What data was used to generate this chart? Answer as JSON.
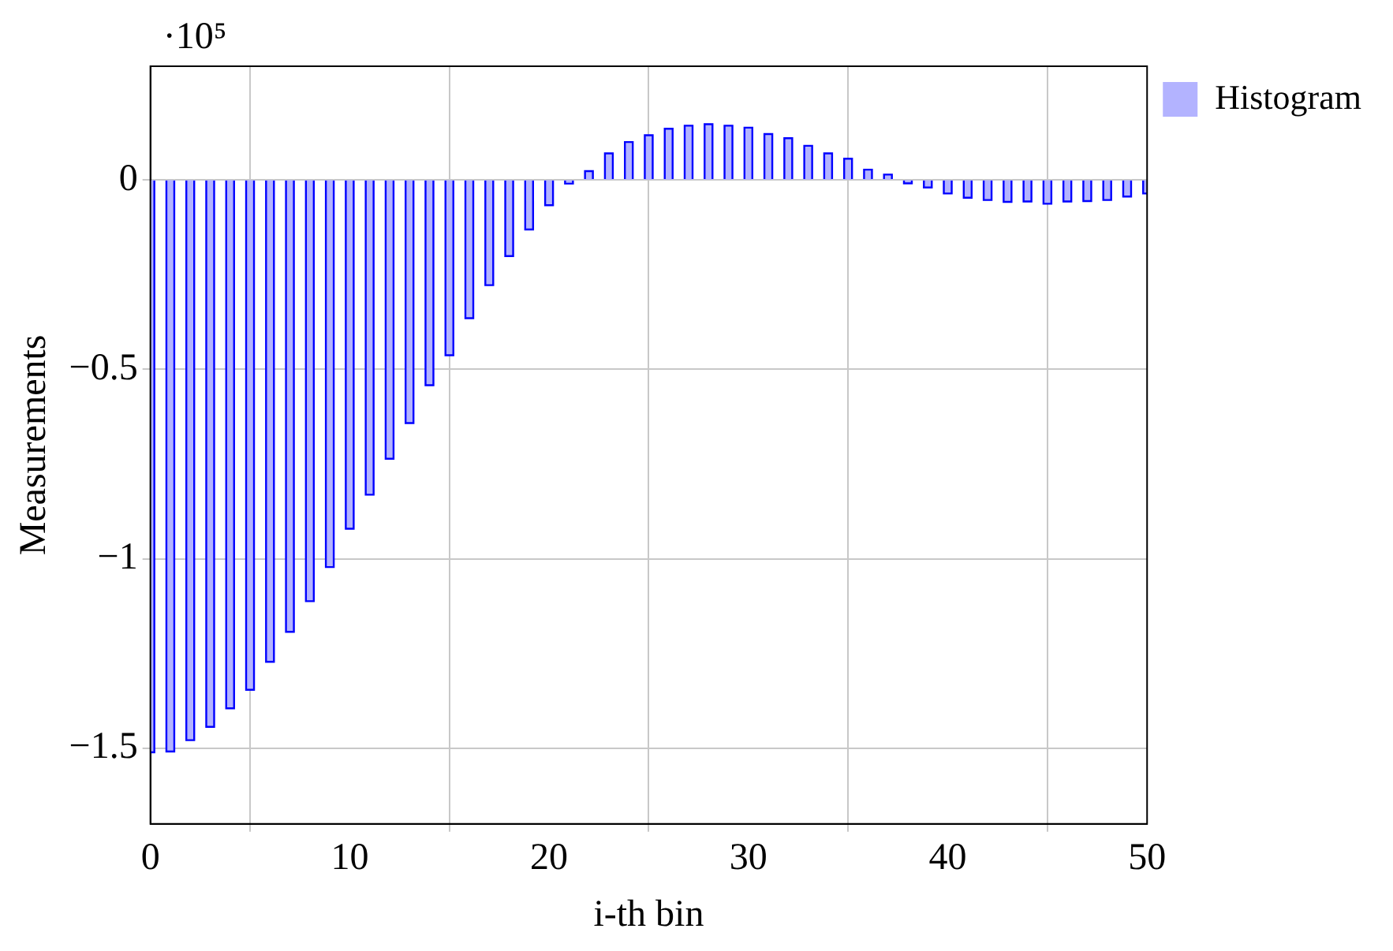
{
  "chart_data": {
    "type": "bar",
    "xlabel": "i-th bin",
    "ylabel": "Measurements",
    "annotations": [
      "·10⁵"
    ],
    "x": [
      0,
      1,
      2,
      3,
      4,
      5,
      6,
      7,
      8,
      9,
      10,
      11,
      12,
      13,
      14,
      15,
      16,
      17,
      18,
      19,
      20,
      21,
      22,
      23,
      24,
      25,
      26,
      27,
      28,
      29,
      30,
      31,
      32,
      33,
      34,
      35,
      36,
      37,
      38,
      39,
      40,
      41,
      42,
      43,
      44,
      45,
      46,
      47,
      48,
      49,
      50
    ],
    "series": [
      {
        "name": "Histogram",
        "color": "#b3b3ff",
        "values": [
          -1.511,
          -1.509,
          -1.479,
          -1.444,
          -1.395,
          -1.346,
          -1.272,
          -1.193,
          -1.112,
          -1.022,
          -0.921,
          -0.831,
          -0.736,
          -0.642,
          -0.542,
          -0.463,
          -0.365,
          -0.278,
          -0.201,
          -0.131,
          -0.067,
          -0.01,
          0.023,
          0.07,
          0.1,
          0.118,
          0.135,
          0.143,
          0.147,
          0.143,
          0.138,
          0.121,
          0.11,
          0.09,
          0.07,
          0.056,
          0.027,
          0.014,
          -0.009,
          -0.02,
          -0.036,
          -0.047,
          -0.053,
          -0.058,
          -0.057,
          -0.063,
          -0.057,
          -0.056,
          -0.053,
          -0.044,
          -0.036
        ]
      }
    ],
    "xlim": [
      0,
      50
    ],
    "xticks": [
      0,
      10,
      20,
      30,
      40,
      50
    ],
    "ylim": [
      -1.7,
      0.3
    ],
    "yticks": [
      {
        "value": -1.5,
        "label": "−1.5"
      },
      {
        "value": -1,
        "label": "−1"
      },
      {
        "value": -0.5,
        "label": "−0.5"
      },
      0
    ],
    "grid": true,
    "legend": "top right"
  }
}
